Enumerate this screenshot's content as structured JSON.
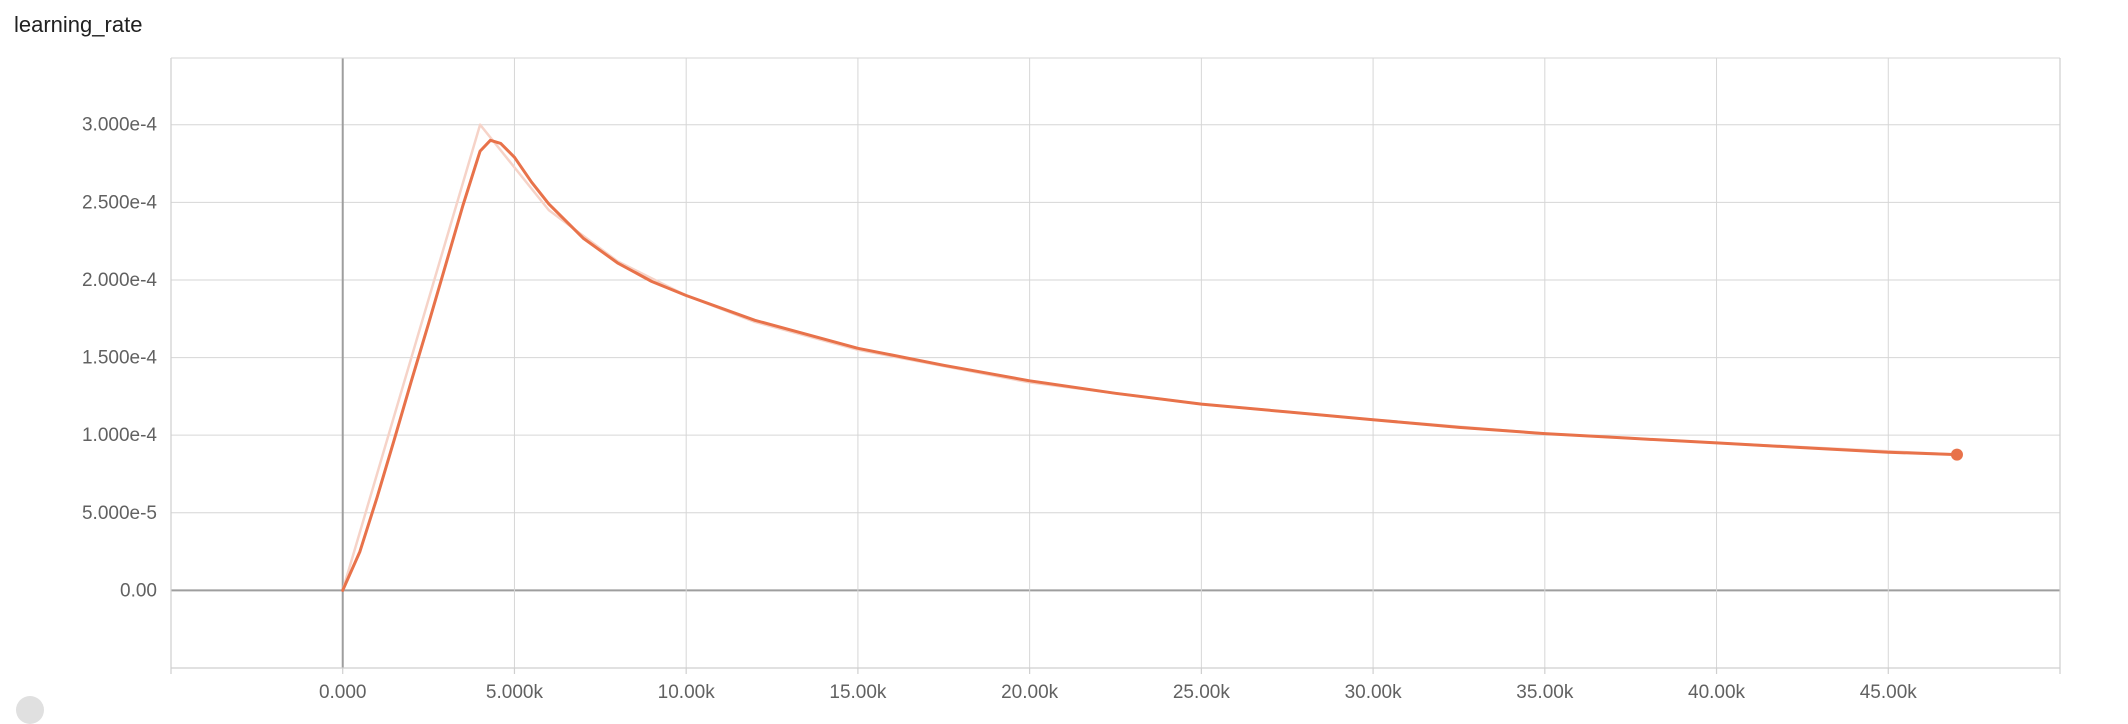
{
  "chart_data": {
    "type": "line",
    "title": "learning_rate",
    "xlabel": "",
    "ylabel": "",
    "xlim": [
      -5000,
      50000
    ],
    "ylim": [
      -5e-05,
      0.000343
    ],
    "x_ticks": [
      0,
      5000,
      10000,
      15000,
      20000,
      25000,
      30000,
      35000,
      40000,
      45000
    ],
    "x_tick_labels": [
      "0.000",
      "5.000k",
      "10.00k",
      "15.00k",
      "20.00k",
      "25.00k",
      "30.00k",
      "35.00k",
      "40.00k",
      "45.00k"
    ],
    "y_ticks": [
      0,
      5e-05,
      0.0001,
      0.00015,
      0.0002,
      0.00025,
      0.0003
    ],
    "y_tick_labels": [
      "0.00",
      "5.000e-5",
      "1.000e-4",
      "1.500e-4",
      "2.000e-4",
      "2.500e-4",
      "3.000e-4"
    ],
    "grid": true,
    "series": [
      {
        "role": "raw",
        "color": "#f6d3c8",
        "x": [
          0,
          4000,
          6000,
          8000,
          10000,
          12000,
          15000,
          20000,
          25000,
          30000,
          35000,
          40000,
          47000
        ],
        "y": [
          0,
          0.0003,
          0.000245,
          0.000212,
          0.00019,
          0.000173,
          0.000155,
          0.000134,
          0.00012,
          0.00011,
          0.000101,
          9.5e-05,
          8.75e-05
        ]
      },
      {
        "role": "smoothed",
        "color": "#e8724a",
        "x": [
          0,
          500,
          1000,
          1500,
          2000,
          2500,
          3000,
          3500,
          4000,
          4300,
          4600,
          5000,
          5500,
          6000,
          7000,
          8000,
          9000,
          10000,
          12000,
          15000,
          17500,
          20000,
          22500,
          25000,
          27500,
          30000,
          32500,
          35000,
          37500,
          40000,
          42500,
          45000,
          47000
        ],
        "y": [
          0,
          2.5e-05,
          6e-05,
          9.7e-05,
          0.000135,
          0.000172,
          0.00021,
          0.000248,
          0.000283,
          0.00029,
          0.000288,
          0.000279,
          0.000263,
          0.000249,
          0.000227,
          0.000211,
          0.000199,
          0.00019,
          0.000174,
          0.000156,
          0.000145,
          0.000135,
          0.000127,
          0.00012,
          0.000115,
          0.00011,
          0.000105,
          0.000101,
          9.8e-05,
          9.5e-05,
          9.2e-05,
          8.9e-05,
          8.75e-05
        ]
      }
    ],
    "last_point": {
      "x": 47000,
      "y": 8.75e-05
    }
  }
}
